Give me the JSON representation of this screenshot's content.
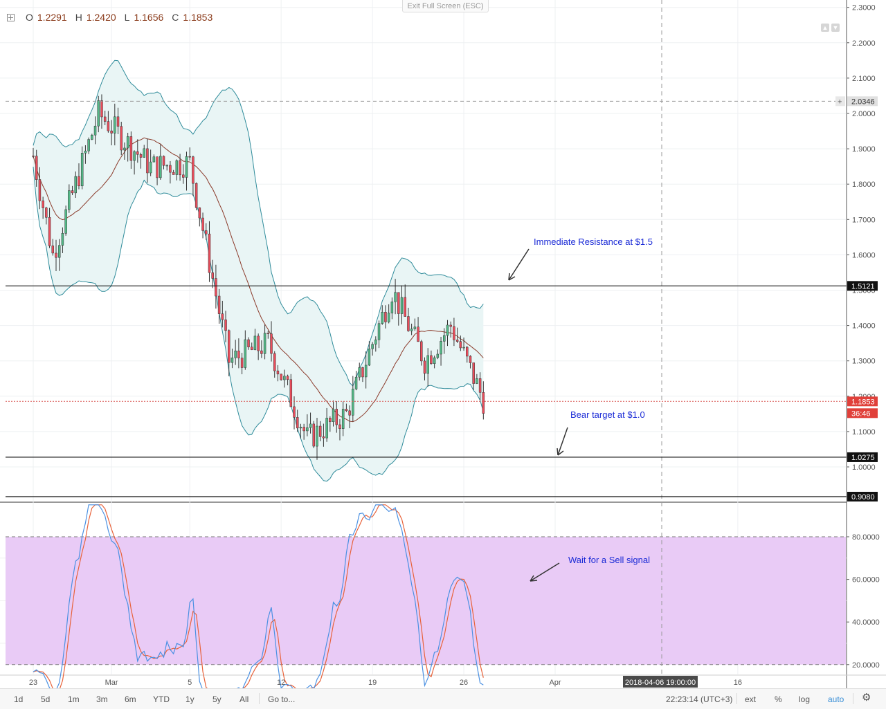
{
  "header": {
    "ohlc": [
      {
        "label": "O",
        "value": "1.2291"
      },
      {
        "label": "H",
        "value": "1.2420"
      },
      {
        "label": "L",
        "value": "1.1656"
      },
      {
        "label": "C",
        "value": "1.1853"
      }
    ],
    "exit_fullscreen": "Exit Full Screen (ESC)"
  },
  "chart_data": {
    "type": "candlestick",
    "price_axis": {
      "min": 0.9,
      "max": 2.32,
      "ticks": [
        "2.3000",
        "2.2000",
        "2.1000",
        "2.0000",
        "1.9000",
        "1.8000",
        "1.7000",
        "1.6000",
        "1.5000",
        "1.4000",
        "1.3000",
        "1.2000",
        "1.1000",
        "1.0000"
      ],
      "tick_values": [
        2.3,
        2.2,
        2.1,
        2.0,
        1.9,
        1.8,
        1.7,
        1.6,
        1.5,
        1.4,
        1.3,
        1.2,
        1.1,
        1.0
      ]
    },
    "oscillator_axis": {
      "ticks": [
        "80.0000",
        "60.0000",
        "40.0000",
        "20.0000"
      ],
      "tick_values": [
        80,
        60,
        40,
        20
      ],
      "band": [
        20,
        80
      ]
    },
    "time_axis": {
      "labels": [
        "23",
        "Mar",
        "5",
        "12",
        "19",
        "26",
        "Apr",
        "16"
      ],
      "label_days": [
        0,
        6,
        12,
        19,
        26,
        33,
        40,
        54
      ]
    },
    "crosshair_time": "2018-04-06 19:00:00",
    "price_labels": {
      "high_dashed": "2.0346",
      "resistance": "1.5121",
      "last_price": "1.1853",
      "countdown": "36:46",
      "support": "1.0275",
      "pane_bottom": "0.9080"
    },
    "horizontal_lines": [
      {
        "kind": "resistance",
        "value": 1.5121
      },
      {
        "kind": "support",
        "value": 1.0275
      },
      {
        "kind": "high-dashed",
        "value": 2.0346
      },
      {
        "kind": "last-dotted",
        "value": 1.1853
      }
    ],
    "annotations": [
      {
        "text": "Immediate Resistance at $1.5"
      },
      {
        "text": "Bear target at $1.0"
      },
      {
        "text": "Wait for a Sell signal"
      }
    ],
    "key_closes": [
      {
        "day": 0,
        "close": 1.88
      },
      {
        "day": 1.5,
        "close": 1.6
      },
      {
        "day": 5,
        "close": 2.0
      },
      {
        "day": 9,
        "close": 1.85
      },
      {
        "day": 12,
        "close": 1.86
      },
      {
        "day": 15,
        "close": 1.3
      },
      {
        "day": 18,
        "close": 1.35
      },
      {
        "day": 21,
        "close": 1.08
      },
      {
        "day": 24,
        "close": 1.15
      },
      {
        "day": 27.5,
        "close": 1.5
      },
      {
        "day": 30,
        "close": 1.3
      },
      {
        "day": 32,
        "close": 1.4
      },
      {
        "day": 34.5,
        "close": 1.19
      }
    ],
    "colors": {
      "up": "#53b987",
      "down": "#eb4d5c",
      "band_fill": "#e9f5f5",
      "band_line": "#2e8b9a",
      "ma": "#8b3a2a",
      "osc_fill": "#e8c8f5",
      "stoch_k": "#4a90e2",
      "stoch_d": "#e8623a"
    }
  },
  "bottom_bar": {
    "ranges": [
      "1d",
      "5d",
      "1m",
      "3m",
      "6m",
      "YTD",
      "1y",
      "5y",
      "All"
    ],
    "goto": "Go to...",
    "clock": "22:23:14 (UTC+3)",
    "toggles": [
      "ext",
      "%",
      "log",
      "auto"
    ]
  }
}
